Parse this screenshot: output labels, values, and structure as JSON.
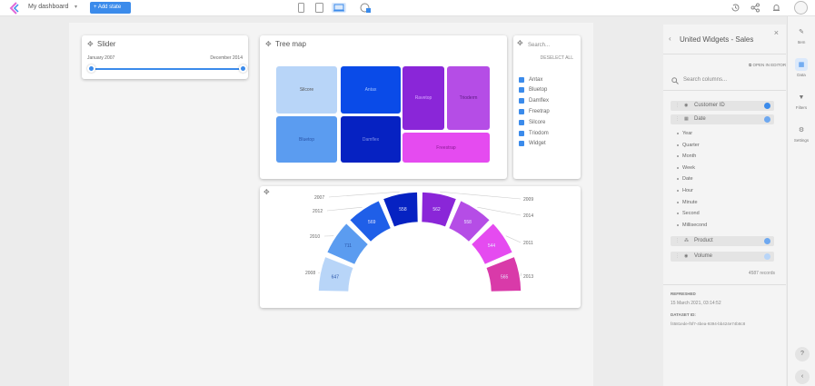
{
  "topbar": {
    "title": "My dashboard",
    "add_label": "+ Add state"
  },
  "slider": {
    "title": "Slider",
    "start": "January 2007",
    "end": "December 2014",
    "range": [
      0,
      1
    ]
  },
  "treemap": {
    "title": "Tree map",
    "tiles": [
      {
        "label": "Silcore",
        "color": "#b8d5f8",
        "text": "#555"
      },
      {
        "label": "Antax",
        "color": "#0a4be8",
        "text": "#9fc0ff"
      },
      {
        "label": "Bluetop",
        "color": "#5b9cf0",
        "text": "#2a55a8"
      },
      {
        "label": "Damflex",
        "color": "#0622c2",
        "text": "#7f90e8"
      },
      {
        "label": "Ravetop",
        "color": "#8a26d8",
        "text": "#d6a6ff"
      },
      {
        "label": "Trioderm",
        "color": "#b54de6",
        "text": "#5a1a80"
      },
      {
        "label": "Freestrap",
        "color": "#e54bf0",
        "text": "#8a1a95"
      }
    ]
  },
  "filter": {
    "search_placeholder": "Search...",
    "deselect": "DESELECT ALL",
    "items": [
      "Antax",
      "Bluetop",
      "Damflex",
      "Freetrap",
      "Silcore",
      "Triodom",
      "Widget"
    ]
  },
  "chart_data": {
    "type": "pie",
    "categories": [
      "2008",
      "2010",
      "2012",
      "2007",
      "2009",
      "2014",
      "2011",
      "2013"
    ],
    "values": [
      647,
      711,
      569,
      558,
      562,
      558,
      544,
      565
    ],
    "labels": [
      "647",
      "711",
      "569",
      "558",
      "562",
      "558",
      "544",
      "565"
    ],
    "colors": [
      "#b8d5f8",
      "#5b9cf0",
      "#1f5fe8",
      "#0622c2",
      "#8a26d8",
      "#b54de6",
      "#e54bf0",
      "#d93aa9"
    ]
  },
  "panel": {
    "title": "United Widgets - Sales",
    "open_editor": "OPEN IN EDITOR",
    "search_placeholder": "Search columns...",
    "columns": [
      {
        "name": "Customer ID",
        "color": "#3b8beb"
      },
      {
        "name": "Date",
        "color": "#6ea8f0"
      },
      {
        "name": "Product",
        "color": "#6ea8f0"
      },
      {
        "name": "Volume",
        "color": "#b8d5f8"
      }
    ],
    "date_parts": [
      "Year",
      "Quarter",
      "Month",
      "Week",
      "Date",
      "Hour",
      "Minute",
      "Second",
      "Millisecond"
    ],
    "records": "4587 records",
    "refreshed_label": "REFRESHED",
    "refreshed_value": "15 March 2021, 03:14:52",
    "dataset_label": "DATASET ID:",
    "dataset_value": "f4581ede-f5f7-4bea-9394-bb424e74b8c8"
  },
  "rail": {
    "items": [
      {
        "label": "Item",
        "icon": "pencil-icon"
      },
      {
        "label": "Data",
        "icon": "table-icon"
      },
      {
        "label": "Filters",
        "icon": "filter-icon"
      },
      {
        "label": "Settings",
        "icon": "gear-icon"
      }
    ],
    "help": "?",
    "collapse": "‹"
  }
}
